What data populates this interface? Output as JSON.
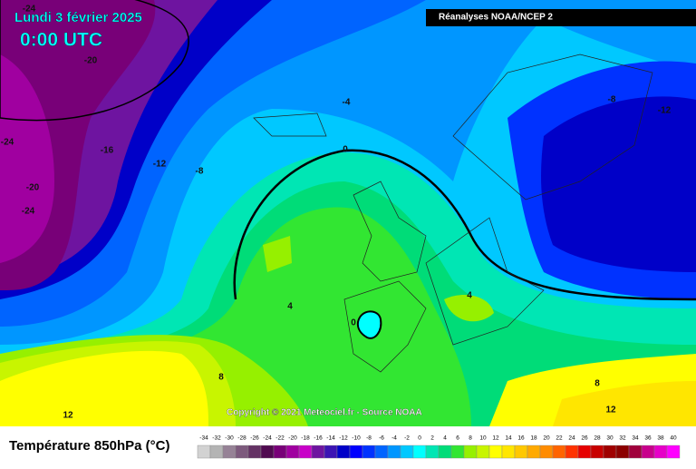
{
  "header": {
    "title": "Lundi 3 février 2025",
    "time": "0:00 UTC",
    "source": "Réanalyses NOAA/NCEP 2"
  },
  "map": {
    "contour_labels": [
      -24,
      -20,
      -24,
      -16,
      -12,
      -8,
      -20,
      -24,
      -4,
      0,
      -8,
      -12,
      4,
      0,
      4,
      8,
      12,
      8,
      12
    ],
    "copyright": "Copyright © 2021 Meteociel.fr - Source NOAA"
  },
  "legend": {
    "title": "Température 850hPa (°C)",
    "values": [
      -34,
      -32,
      -30,
      -28,
      -26,
      -24,
      -22,
      -20,
      -18,
      -16,
      -14,
      -12,
      -10,
      -8,
      -6,
      -4,
      -2,
      0,
      2,
      4,
      6,
      8,
      10,
      12,
      14,
      16,
      18,
      20,
      22,
      24,
      26,
      28,
      30,
      32,
      34,
      36,
      38,
      40
    ],
    "colors": [
      "#d2d2d2",
      "#b4b4b4",
      "#968296",
      "#7d5a7d",
      "#643264",
      "#500a50",
      "#780078",
      "#a000a0",
      "#c800c8",
      "#6e14a0",
      "#3c14b4",
      "#0000c8",
      "#0000ff",
      "#0032ff",
      "#0064ff",
      "#0096ff",
      "#00c8ff",
      "#00ffff",
      "#00e6b4",
      "#00dc78",
      "#32e632",
      "#96f000",
      "#c8f500",
      "#ffff00",
      "#ffe600",
      "#ffc800",
      "#ffaa00",
      "#ff8c00",
      "#ff6400",
      "#ff3200",
      "#e60000",
      "#c80000",
      "#a00000",
      "#8c0000",
      "#a0003c",
      "#c8008c",
      "#e600c8",
      "#ff00ff"
    ]
  }
}
